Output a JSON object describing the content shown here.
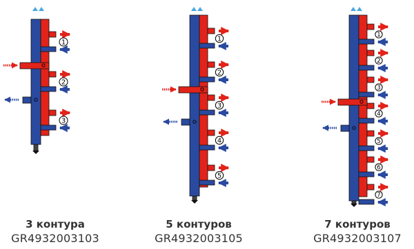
{
  "colors": {
    "supply": "#e2231a",
    "return": "#2a4aa0",
    "outline": "#111111",
    "top_marks": "#4aa8df"
  },
  "variants": [
    {
      "title": "3 контура",
      "code": "GR4932003103",
      "circuits": [
        "1",
        "2",
        "3"
      ]
    },
    {
      "title": "5 контуров",
      "code": "GR4932003105",
      "circuits": [
        "1",
        "2",
        "3",
        "4",
        "5"
      ]
    },
    {
      "title": "7 контуров",
      "code": "GR4932003107",
      "circuits": [
        "1",
        "2",
        "3",
        "4",
        "5",
        "6",
        "7"
      ]
    }
  ]
}
